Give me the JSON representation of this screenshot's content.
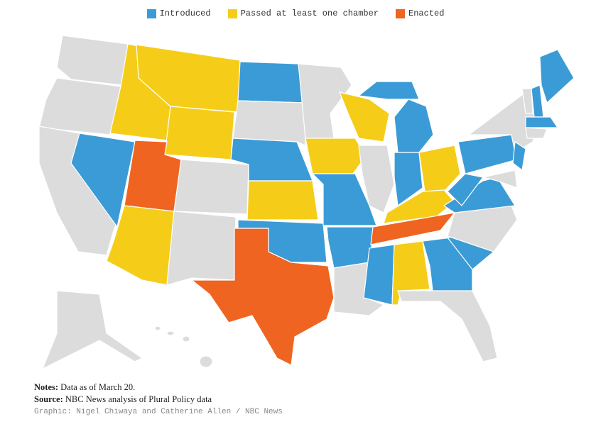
{
  "legend": [
    {
      "label": "Introduced",
      "color": "#3b9bd6"
    },
    {
      "label": "Passed at least one chamber",
      "color": "#f5cd19"
    },
    {
      "label": "Enacted",
      "color": "#ef6421"
    }
  ],
  "notes": {
    "label": "Notes:",
    "text": "Data as of March 20."
  },
  "source": {
    "label": "Source:",
    "text": "NBC News analysis of Plural Policy data"
  },
  "credit": "Graphic: Nigel Chiwaya and Catherine Allen / NBC News"
}
